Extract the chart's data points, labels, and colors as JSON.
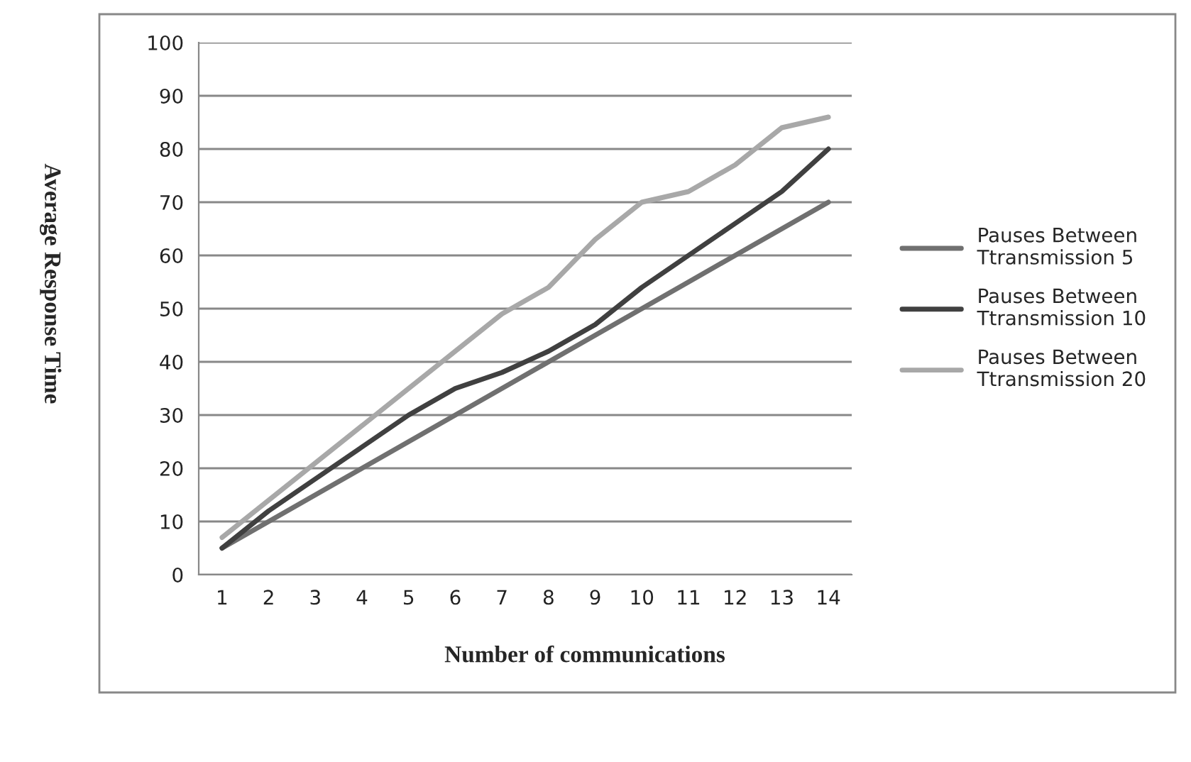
{
  "chart_data": {
    "type": "line",
    "xlabel": "Number of communications",
    "ylabel": "Average Response Time",
    "categories": [
      "1",
      "2",
      "3",
      "4",
      "5",
      "6",
      "7",
      "8",
      "9",
      "10",
      "11",
      "12",
      "13",
      "14"
    ],
    "series": [
      {
        "name": "Pauses Between Ttransmission 5",
        "color": "#707070",
        "values": [
          5,
          10,
          15,
          20,
          25,
          30,
          35,
          40,
          45,
          50,
          55,
          60,
          65,
          70
        ]
      },
      {
        "name": "Pauses Between Ttransmission 10",
        "color": "#404040",
        "values": [
          5,
          12,
          18,
          24,
          30,
          35,
          38,
          42,
          47,
          54,
          60,
          66,
          72,
          80
        ]
      },
      {
        "name": "Pauses Between Ttransmission 20",
        "color": "#a8a8a8",
        "values": [
          7,
          14,
          21,
          28,
          35,
          42,
          49,
          54,
          63,
          70,
          72,
          77,
          84,
          86
        ]
      }
    ],
    "ylim": [
      0,
      100
    ],
    "yticks": [
      0,
      10,
      20,
      30,
      40,
      50,
      60,
      70,
      80,
      90,
      100
    ],
    "grid": "y",
    "legend": "right",
    "marker": "none",
    "line_style": "solid"
  }
}
